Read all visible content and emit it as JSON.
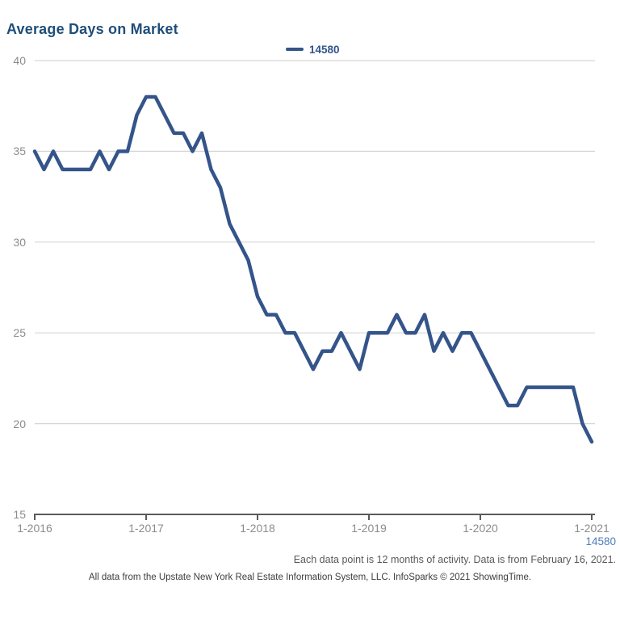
{
  "title": "Average Days on Market",
  "legend": {
    "series_label": "14580"
  },
  "corner_series_label": "14580",
  "footer": {
    "note_right": "Each data point is 12 months of activity. Data is from February 16, 2021.",
    "attribution": "All data from the Upstate New York Real Estate Information System, LLC. InfoSparks © 2021 ShowingTime."
  },
  "colors": {
    "line": "#34548A",
    "title": "#1F4E79",
    "legend_text": "#34548A",
    "axis_text": "#8C8C8C",
    "gridline": "#D6D6D6",
    "axis_line": "#5A5A5A",
    "corner_label": "#4A7EBB",
    "note_text": "#595959",
    "attribution_text": "#3D3D3D"
  },
  "chart_data": {
    "type": "line",
    "title": "Average Days on Market",
    "x_frequency": "monthly",
    "x_start": "1-2016",
    "x_end": "1-2021",
    "x_tick_labels": [
      "1-2016",
      "1-2017",
      "1-2018",
      "1-2019",
      "1-2020",
      "1-2021"
    ],
    "x_tick_month_indices": [
      0,
      12,
      24,
      36,
      48,
      60
    ],
    "y_ticks": [
      40,
      35,
      30,
      25,
      20,
      15
    ],
    "ylim": [
      15,
      40
    ],
    "grid": "horizontal",
    "legend_position": "top-center",
    "series": [
      {
        "name": "14580",
        "values": [
          35,
          34,
          35,
          34,
          34,
          34,
          34,
          35,
          34,
          35,
          35,
          37,
          38,
          38,
          37,
          36,
          36,
          35,
          36,
          34,
          33,
          31,
          30,
          29,
          27,
          26,
          26,
          25,
          25,
          24,
          23,
          24,
          24,
          25,
          24,
          23,
          25,
          25,
          25,
          26,
          25,
          25,
          26,
          24,
          25,
          24,
          25,
          25,
          24,
          23,
          22,
          21,
          21,
          22,
          22,
          22,
          22,
          22,
          22,
          20,
          19
        ]
      }
    ]
  }
}
